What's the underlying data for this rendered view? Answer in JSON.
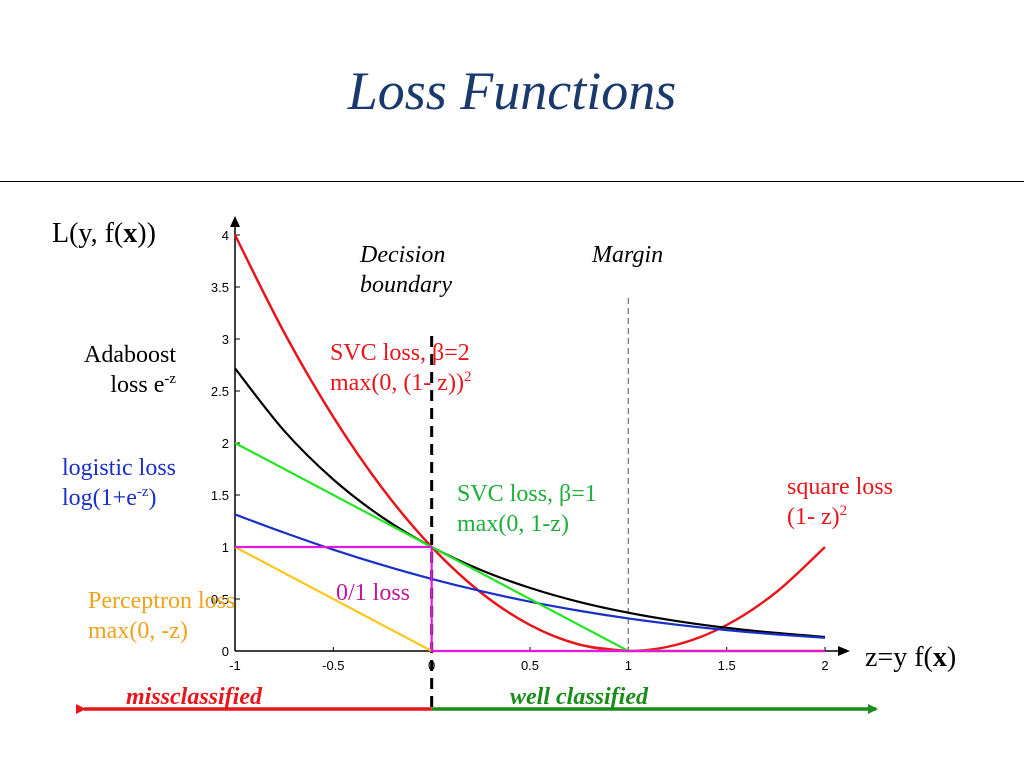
{
  "title": "Loss Functions",
  "colors": {
    "title": "#1a3a6e",
    "square": "#e8161b",
    "svc1": "#22e622",
    "logistic": "#1a2fc8",
    "adaboost": "#000000",
    "perceptron": "#ffc61a",
    "zero_one": "#e01ae0",
    "misclassified": "#e8161b",
    "well_classified": "#1a8c1a"
  },
  "labels": {
    "ylabel_prefix": "L(y, f(",
    "ylabel_bold": "x",
    "ylabel_suffix": "))",
    "xlabel_prefix": "z=y f(",
    "xlabel_bold": "x",
    "xlabel_suffix": ")",
    "decision_1": "Decision",
    "decision_2": "boundary",
    "margin": "Margin",
    "adaboost_1": "Adaboost",
    "adaboost_2": "loss e",
    "adaboost_2_sup": "-z",
    "logistic_1": "logistic loss",
    "logistic_2": "log(1+e",
    "logistic_2_sup": "-z",
    "logistic_2_end": ")",
    "perceptron_1": "Perceptron loss",
    "perceptron_2": "max(0, -z)",
    "svc2_1": "SVC loss, β=2",
    "svc2_2": "max(0, (1- z))",
    "svc2_2_sup": "2",
    "svc1_1": "SVC loss, β=1",
    "svc1_2": "max(0, 1-z)",
    "zero_one": "0/1 loss",
    "square_1": "square loss",
    "square_2": "(1- z)",
    "square_2_sup": "2",
    "misclassified": "missclassified",
    "well_classified": "well classified"
  },
  "chart_data": {
    "type": "line",
    "xlim": [
      -1,
      2
    ],
    "ylim": [
      0,
      4
    ],
    "xticks": [
      "-1",
      "-0.5",
      "0",
      "0.5",
      "1",
      "1.5",
      "2"
    ],
    "yticks": [
      "0",
      "0.5",
      "1",
      "1.5",
      "2",
      "2.5",
      "3",
      "3.5",
      "4"
    ],
    "vlines": [
      {
        "x": 0,
        "style": "thick-dashed"
      },
      {
        "x": 1,
        "style": "thin-dashed"
      }
    ],
    "series": [
      {
        "key": "square",
        "x": [
          -1,
          -0.75,
          -0.5,
          -0.25,
          0,
          0.25,
          0.5,
          0.75,
          1,
          1.25,
          1.5,
          1.75,
          2
        ],
        "y": [
          4,
          3.0625,
          2.25,
          1.5625,
          1,
          0.5625,
          0.25,
          0.0625,
          0,
          0.0625,
          0.25,
          0.5625,
          1
        ]
      },
      {
        "key": "svc2",
        "x": [
          -1,
          -0.75,
          -0.5,
          -0.25,
          0,
          0.25,
          0.5,
          0.75,
          1,
          1.5,
          2
        ],
        "y": [
          4,
          3.0625,
          2.25,
          1.5625,
          1,
          0.5625,
          0.25,
          0.0625,
          0,
          0,
          0
        ]
      },
      {
        "key": "adaboost",
        "x": [
          -1,
          -0.75,
          -0.5,
          -0.25,
          0,
          0.25,
          0.5,
          0.75,
          1,
          1.25,
          1.5,
          1.75,
          2
        ],
        "y": [
          2.718,
          2.117,
          1.649,
          1.284,
          1,
          0.779,
          0.607,
          0.472,
          0.368,
          0.287,
          0.223,
          0.174,
          0.135
        ]
      },
      {
        "key": "logistic",
        "x": [
          -1,
          -0.75,
          -0.5,
          -0.25,
          0,
          0.25,
          0.5,
          0.75,
          1,
          1.25,
          1.5,
          1.75,
          2
        ],
        "y": [
          1.313,
          1.138,
          0.974,
          0.826,
          0.693,
          0.576,
          0.474,
          0.387,
          0.313,
          0.252,
          0.201,
          0.16,
          0.127
        ]
      },
      {
        "key": "svc1",
        "x": [
          -1,
          1,
          2
        ],
        "y": [
          2,
          0,
          0
        ]
      },
      {
        "key": "perceptron",
        "x": [
          -1,
          0,
          2
        ],
        "y": [
          1,
          0,
          0
        ]
      },
      {
        "key": "zero_one",
        "x": [
          -1,
          0,
          0,
          2
        ],
        "y": [
          1,
          1,
          0,
          0
        ]
      }
    ]
  }
}
